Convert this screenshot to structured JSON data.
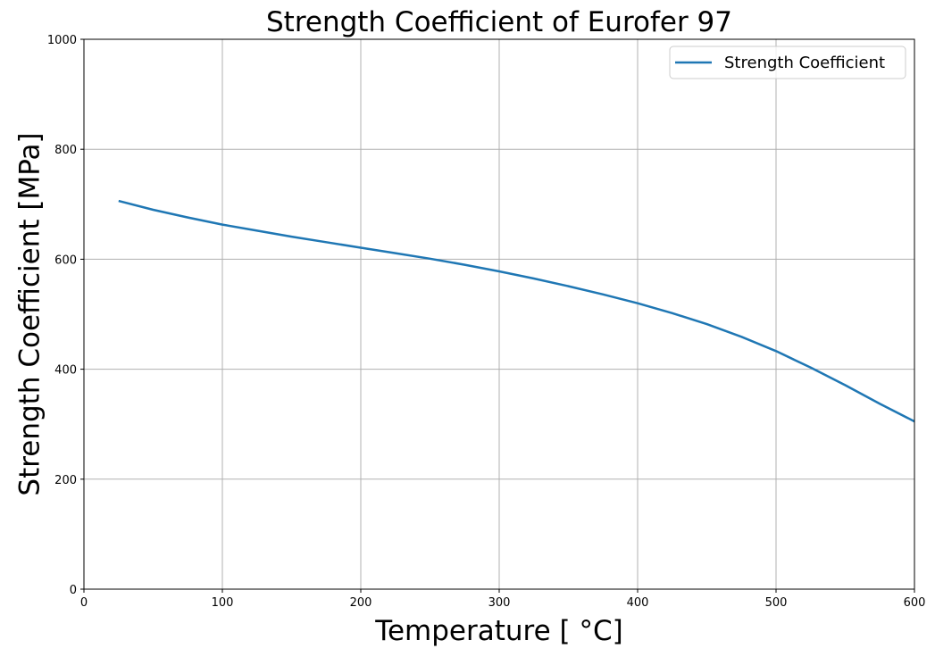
{
  "chart_data": {
    "type": "line",
    "title": "Strength Coefficient of Eurofer 97",
    "xlabel": "Temperature [$^\\circ$C]",
    "xlabel_display": "Temperature [ °C]",
    "ylabel": "Strength Coefficient [MPa]",
    "xlim": [
      0,
      600
    ],
    "ylim": [
      0,
      1000
    ],
    "x_ticks": [
      0,
      100,
      200,
      300,
      400,
      500,
      600
    ],
    "y_ticks": [
      0,
      200,
      400,
      600,
      800,
      1000
    ],
    "grid": true,
    "legend_position": "top-right",
    "series": [
      {
        "name": "Strength Coefficient",
        "color": "#1f77b4",
        "x": [
          25,
          50,
          75,
          100,
          125,
          150,
          175,
          200,
          225,
          250,
          275,
          300,
          325,
          350,
          375,
          400,
          425,
          450,
          475,
          500,
          525,
          550,
          575,
          600
        ],
        "y": [
          706,
          690,
          676,
          663,
          652,
          641,
          631,
          621,
          611,
          601,
          590,
          578,
          565,
          551,
          536,
          520,
          502,
          482,
          459,
          433,
          403,
          371,
          337,
          305
        ]
      }
    ]
  }
}
